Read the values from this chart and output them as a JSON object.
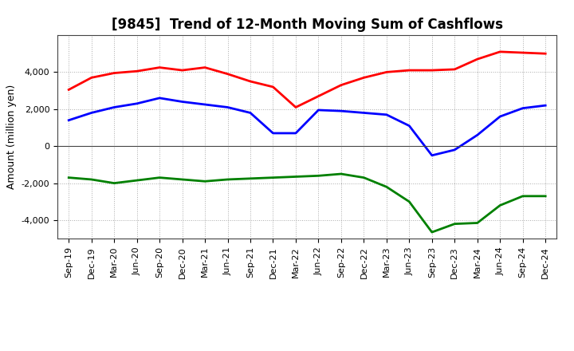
{
  "title": "[9845]  Trend of 12-Month Moving Sum of Cashflows",
  "ylabel": "Amount (million yen)",
  "x_labels": [
    "Sep-19",
    "Dec-19",
    "Mar-20",
    "Jun-20",
    "Sep-20",
    "Dec-20",
    "Mar-21",
    "Jun-21",
    "Sep-21",
    "Dec-21",
    "Mar-22",
    "Jun-22",
    "Sep-22",
    "Dec-22",
    "Mar-23",
    "Jun-23",
    "Sep-23",
    "Dec-23",
    "Mar-24",
    "Jun-24",
    "Sep-24",
    "Dec-24"
  ],
  "operating_cashflow": [
    3050,
    3700,
    3950,
    4050,
    4250,
    4100,
    4250,
    3900,
    3500,
    3200,
    2100,
    2700,
    3300,
    3700,
    4000,
    4100,
    4100,
    4150,
    4700,
    5100,
    5050,
    5000
  ],
  "investing_cashflow": [
    -1700,
    -1800,
    -2000,
    -1850,
    -1700,
    -1800,
    -1900,
    -1800,
    -1750,
    -1700,
    -1650,
    -1600,
    -1500,
    -1700,
    -2200,
    -3000,
    -4650,
    -4200,
    -4150,
    -3200,
    -2700,
    -2700
  ],
  "free_cashflow": [
    1400,
    1800,
    2100,
    2300,
    2600,
    2400,
    2250,
    2100,
    1800,
    700,
    700,
    1950,
    1900,
    1800,
    1700,
    1100,
    -500,
    -200,
    600,
    1600,
    2050,
    2200
  ],
  "operating_color": "#ff0000",
  "investing_color": "#008000",
  "free_color": "#0000ff",
  "ylim": [
    -5000,
    6000
  ],
  "yticks": [
    -4000,
    -2000,
    0,
    2000,
    4000
  ],
  "background_color": "#ffffff",
  "grid_color": "#aaaaaa",
  "line_width": 2.0,
  "title_fontsize": 12,
  "legend_fontsize": 9,
  "axis_label_fontsize": 9,
  "tick_fontsize": 8
}
